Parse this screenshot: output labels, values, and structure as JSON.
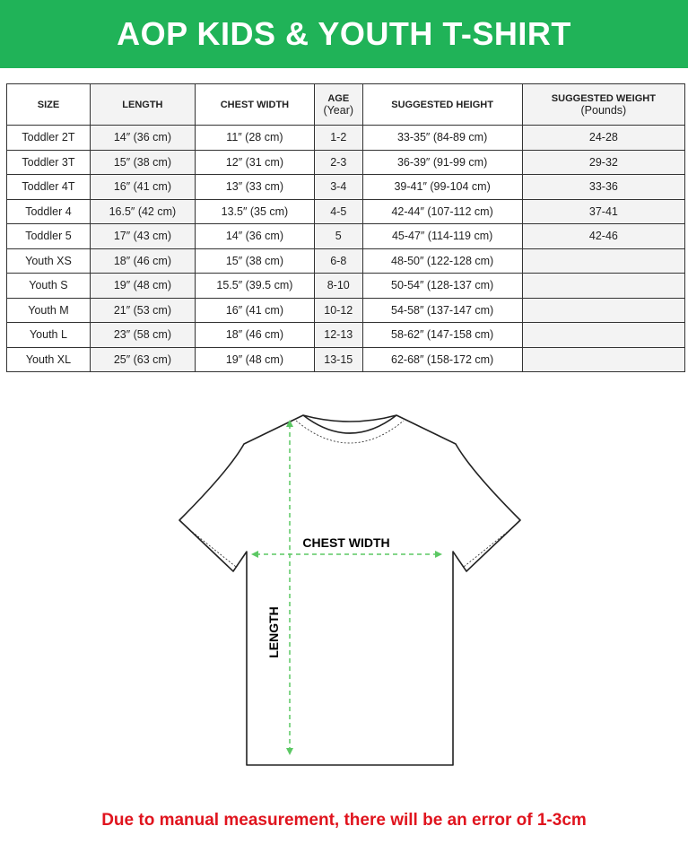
{
  "title": "AOP KIDS & YOUTH T-SHIRT",
  "table": {
    "headers": [
      {
        "label": "SIZE",
        "sub": ""
      },
      {
        "label": "LENGTH",
        "sub": ""
      },
      {
        "label": "CHEST WIDTH",
        "sub": ""
      },
      {
        "label": "AGE",
        "sub": "(Year)"
      },
      {
        "label": "SUGGESTED HEIGHT",
        "sub": ""
      },
      {
        "label": "SUGGESTED WEIGHT",
        "sub": "(Pounds)"
      }
    ],
    "rows": [
      [
        "Toddler 2T",
        "14″ (36 cm)",
        "11″ (28 cm)",
        "1-2",
        "33-35″ (84-89 cm)",
        "24-28"
      ],
      [
        "Toddler 3T",
        "15″ (38 cm)",
        "12″ (31 cm)",
        "2-3",
        "36-39″ (91-99 cm)",
        "29-32"
      ],
      [
        "Toddler 4T",
        "16″ (41 cm)",
        "13″ (33 cm)",
        "3-4",
        "39-41″ (99-104 cm)",
        "33-36"
      ],
      [
        "Toddler 4",
        "16.5″ (42 cm)",
        "13.5″ (35 cm)",
        "4-5",
        "42-44″ (107-112 cm)",
        "37-41"
      ],
      [
        "Toddler 5",
        "17″ (43 cm)",
        "14″ (36 cm)",
        "5",
        "45-47″ (114-119 cm)",
        "42-46"
      ],
      [
        "Youth XS",
        "18″ (46 cm)",
        "15″ (38 cm)",
        "6-8",
        "48-50″ (122-128 cm)",
        ""
      ],
      [
        "Youth S",
        "19″ (48 cm)",
        "15.5″ (39.5 cm)",
        "8-10",
        "50-54″ (128-137 cm)",
        ""
      ],
      [
        "Youth M",
        "21″ (53 cm)",
        "16″ (41 cm)",
        "10-12",
        "54-58″ (137-147 cm)",
        ""
      ],
      [
        "Youth L",
        "23″ (58 cm)",
        "18″ (46 cm)",
        "12-13",
        "58-62″ (147-158 cm)",
        ""
      ],
      [
        "Youth XL",
        "25″ (63 cm)",
        "19″ (48 cm)",
        "13-15",
        "62-68″ (158-172 cm)",
        ""
      ]
    ]
  },
  "diagram": {
    "chest_label": "CHEST WIDTH",
    "length_label": "LENGTH",
    "guide_color": "#5cc864"
  },
  "note": "Due to manual measurement, there will be an error of 1-3cm",
  "colors": {
    "banner": "#20b358",
    "note": "#e0141e"
  }
}
